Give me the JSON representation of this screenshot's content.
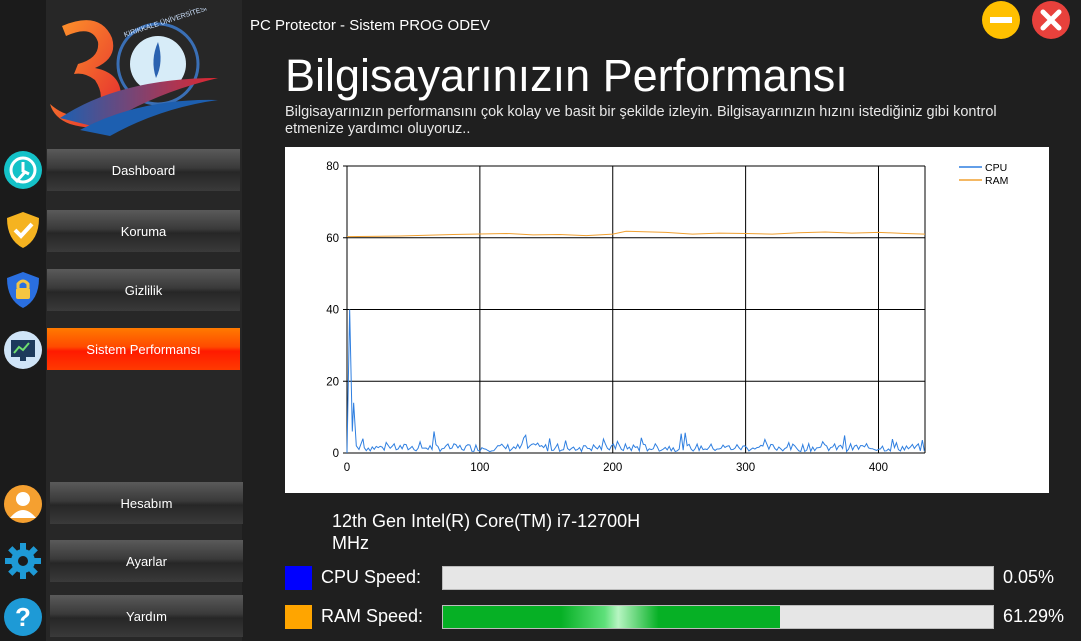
{
  "app": {
    "title": "PC Protector - Sistem PROG ODEV"
  },
  "logo": {
    "text": "KIRIKKALE ÜNİVERSİTESİ",
    "number": "30"
  },
  "sidebar": {
    "items": [
      {
        "label": "Dashboard",
        "icon": "dashboard-clock-icon"
      },
      {
        "label": "Koruma",
        "icon": "shield-check-icon"
      },
      {
        "label": "Gizlilik",
        "icon": "shield-lock-icon"
      },
      {
        "label": "Sistem Performansı",
        "icon": "monitor-chart-icon",
        "active": true
      }
    ],
    "bottom_items": [
      {
        "label": "Hesabım",
        "icon": "user-avatar-icon"
      },
      {
        "label": "Ayarlar",
        "icon": "gear-icon"
      },
      {
        "label": "Yardım",
        "icon": "help-icon"
      }
    ]
  },
  "page": {
    "title": "Bilgisayarınızın Performansı",
    "description": "Bilgisayarınızın performansını çok kolay ve basit bir şekilde izleyin. Bilgisayarınızın hızını istediğiniz gibi kontrol etmenize yardımcı oluyoruz.."
  },
  "chart_data": {
    "type": "line",
    "xlim": [
      0,
      435
    ],
    "ylim": [
      0,
      80
    ],
    "xticks": [
      0,
      100,
      200,
      300,
      400
    ],
    "yticks": [
      0,
      20,
      40,
      60,
      80
    ],
    "grid": true,
    "legend_position": "top-right",
    "series": [
      {
        "name": "CPU",
        "color": "#2f7fe0",
        "note_start": [
          [
            0,
            0
          ],
          [
            2,
            40
          ],
          [
            4,
            6
          ],
          [
            5,
            14
          ],
          [
            7,
            2
          ],
          [
            9,
            1
          ],
          [
            12,
            4
          ]
        ],
        "baseline": 1.5,
        "noise": 2.2
      },
      {
        "name": "RAM",
        "color": "#f0a030",
        "points": [
          [
            0,
            60.3
          ],
          [
            40,
            60.5
          ],
          [
            80,
            60.9
          ],
          [
            120,
            61.2
          ],
          [
            140,
            60.8
          ],
          [
            160,
            60.9
          ],
          [
            180,
            60.6
          ],
          [
            200,
            61.0
          ],
          [
            210,
            61.8
          ],
          [
            240,
            61.5
          ],
          [
            260,
            61.0
          ],
          [
            280,
            61.3
          ],
          [
            300,
            61.2
          ],
          [
            320,
            61.0
          ],
          [
            340,
            61.4
          ],
          [
            360,
            61.6
          ],
          [
            380,
            61.3
          ],
          [
            400,
            61.5
          ],
          [
            420,
            61.2
          ],
          [
            435,
            61.0
          ]
        ]
      }
    ]
  },
  "cpu": {
    "name": "12th Gen Intel(R) Core(TM) i7-12700H",
    "unit": "MHz"
  },
  "speeds": {
    "cpu": {
      "label": "CPU Speed:",
      "value": 0.05,
      "display": "0.05%",
      "color": "#0000ff"
    },
    "ram": {
      "label": "RAM Speed:",
      "value": 61.29,
      "display": "61.29%",
      "color": "#ffa500"
    }
  },
  "controls": {
    "minimize_icon": "minimize-icon",
    "close_icon": "close-icon"
  }
}
